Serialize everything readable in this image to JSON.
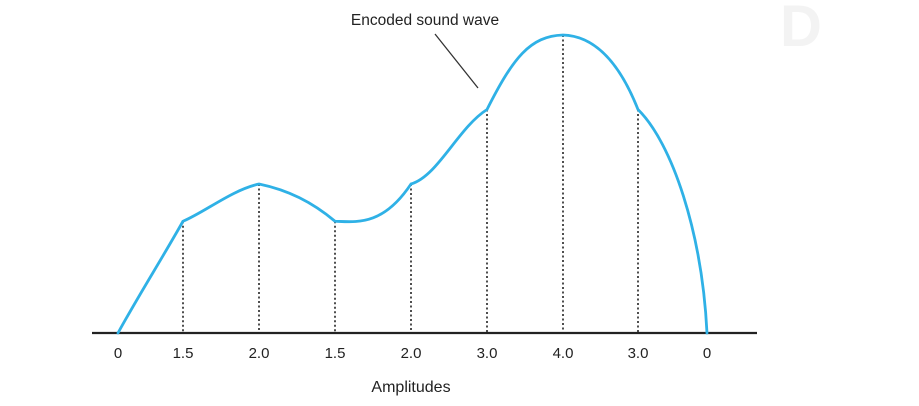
{
  "diagram": {
    "annotation": "Encoded sound wave",
    "axis_title": "Amplitudes",
    "watermark": "D",
    "wave_color": "#2fb1e6",
    "axis_color": "#222222",
    "samples": [
      {
        "label": "0",
        "amplitude": 0
      },
      {
        "label": "1.5",
        "amplitude": 1.5
      },
      {
        "label": "2.0",
        "amplitude": 2.0
      },
      {
        "label": "1.5",
        "amplitude": 1.5
      },
      {
        "label": "2.0",
        "amplitude": 2.0
      },
      {
        "label": "3.0",
        "amplitude": 3.0
      },
      {
        "label": "4.0",
        "amplitude": 4.0
      },
      {
        "label": "3.0",
        "amplitude": 3.0
      },
      {
        "label": "0",
        "amplitude": 0
      }
    ]
  }
}
